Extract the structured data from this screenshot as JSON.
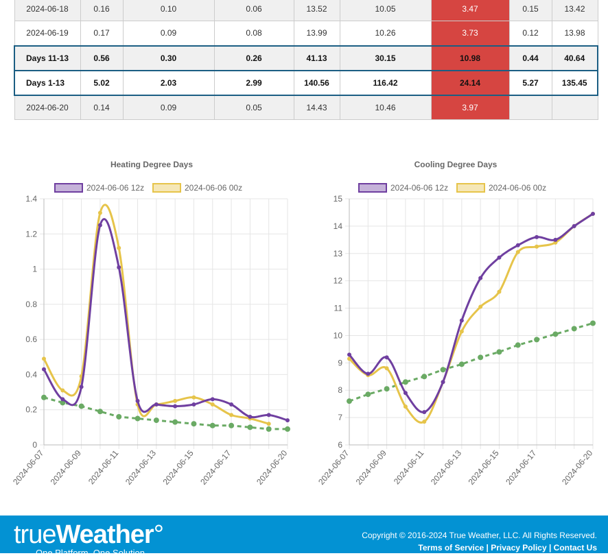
{
  "table": {
    "rows": [
      {
        "type": "gray",
        "cells": [
          "2024-06-18",
          "0.16",
          "0.10",
          "0.06",
          "13.52",
          "10.05",
          "3.47",
          "0.15",
          "13.42"
        ]
      },
      {
        "type": "white",
        "cells": [
          "2024-06-19",
          "0.17",
          "0.09",
          "0.08",
          "13.99",
          "10.26",
          "3.73",
          "0.12",
          "13.98"
        ]
      },
      {
        "type": "sum gray",
        "cells": [
          "Days 11-13",
          "0.56",
          "0.30",
          "0.26",
          "41.13",
          "30.15",
          "10.98",
          "0.44",
          "40.64"
        ]
      },
      {
        "type": "sum",
        "cells": [
          "Days 1-13",
          "5.02",
          "2.03",
          "2.99",
          "140.56",
          "116.42",
          "24.14",
          "5.27",
          "135.45"
        ]
      },
      {
        "type": "gray",
        "cells": [
          "2024-06-20",
          "0.14",
          "0.09",
          "0.05",
          "14.43",
          "10.46",
          "3.97",
          "",
          ""
        ]
      }
    ],
    "highlight_color": "#d64541"
  },
  "chart_data": [
    {
      "type": "line",
      "title": "Heating Degree Days",
      "ylim": [
        0,
        1.4
      ],
      "yticks": [
        0,
        0.2,
        0.4,
        0.6,
        0.8,
        1.0,
        1.2,
        1.4
      ],
      "grid": true,
      "legend": "top",
      "x": [
        "2024-06-07",
        "2024-06-08",
        "2024-06-09",
        "2024-06-10",
        "2024-06-11",
        "2024-06-12",
        "2024-06-13",
        "2024-06-14",
        "2024-06-15",
        "2024-06-16",
        "2024-06-17",
        "2024-06-18",
        "2024-06-19",
        "2024-06-20"
      ],
      "xticks": [
        "2024-06-07",
        "2024-06-09",
        "2024-06-11",
        "2024-06-13",
        "2024-06-15",
        "2024-06-17",
        "2024-06-20"
      ],
      "series": [
        {
          "name": "2024-06-06 12z",
          "color": "#6f3fa0",
          "values": [
            0.43,
            0.26,
            0.33,
            1.25,
            1.01,
            0.25,
            0.23,
            0.22,
            0.23,
            0.26,
            0.23,
            0.16,
            0.17,
            0.14
          ]
        },
        {
          "name": "2024-06-06 00z",
          "color": "#e6c44a",
          "values": [
            0.49,
            0.31,
            0.39,
            1.32,
            1.12,
            0.23,
            0.23,
            0.25,
            0.27,
            0.23,
            0.17,
            0.15,
            0.12,
            null
          ]
        },
        {
          "color": "#6aaa64",
          "dashed": true,
          "values": [
            0.27,
            0.24,
            0.22,
            0.19,
            0.16,
            0.15,
            0.14,
            0.13,
            0.12,
            0.11,
            0.11,
            0.1,
            0.09,
            0.09
          ]
        }
      ]
    },
    {
      "type": "line",
      "title": "Cooling Degree Days",
      "ylim": [
        6,
        15
      ],
      "yticks": [
        6,
        7,
        8,
        9,
        10,
        11,
        12,
        13,
        14,
        15
      ],
      "grid": true,
      "legend": "top",
      "x": [
        "2024-06-07",
        "2024-06-08",
        "2024-06-09",
        "2024-06-10",
        "2024-06-11",
        "2024-06-12",
        "2024-06-13",
        "2024-06-14",
        "2024-06-15",
        "2024-06-16",
        "2024-06-17",
        "2024-06-18",
        "2024-06-19",
        "2024-06-20"
      ],
      "xticks": [
        "2024-06-07",
        "2024-06-09",
        "2024-06-11",
        "2024-06-13",
        "2024-06-15",
        "2024-06-17",
        "2024-06-20"
      ],
      "series": [
        {
          "name": "2024-06-06 12z",
          "color": "#6f3fa0",
          "values": [
            9.3,
            8.6,
            9.2,
            7.9,
            7.2,
            8.3,
            10.55,
            12.1,
            12.85,
            13.3,
            13.6,
            13.5,
            14.0,
            14.45
          ]
        },
        {
          "name": "2024-06-06 00z",
          "color": "#e6c44a",
          "values": [
            9.15,
            8.55,
            8.8,
            7.4,
            6.85,
            8.3,
            10.15,
            11.05,
            11.6,
            13.05,
            13.25,
            13.4,
            14.0,
            14.45
          ]
        },
        {
          "color": "#6aaa64",
          "dashed": true,
          "values": [
            7.6,
            7.85,
            8.05,
            8.3,
            8.5,
            8.75,
            8.95,
            9.2,
            9.4,
            9.65,
            9.85,
            10.05,
            10.25,
            10.45
          ]
        }
      ]
    }
  ],
  "footer": {
    "logo": "trueWeather",
    "tagline": "One Platform. One Solution.",
    "copyright": "Copyright © 2016-2024 True Weather, LLC. All Rights Reserved.",
    "links": [
      "Terms of Service",
      "Privacy Policy",
      "Contact Us"
    ]
  }
}
